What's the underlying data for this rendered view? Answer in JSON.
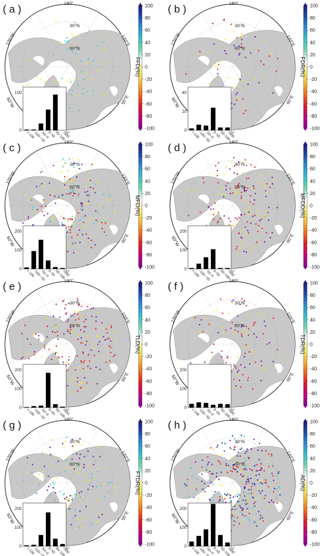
{
  "colorbar": {
    "ticks": [
      "100",
      "80",
      "60",
      "40",
      "20",
      "0",
      "-20",
      "-40",
      "-60",
      "-80",
      "-100"
    ],
    "stops": [
      "#1c1c7a",
      "#1f4db3",
      "#2f8fd6",
      "#39c2c9",
      "#7ad6b0",
      "#ffffff",
      "#f7ec6c",
      "#f8b632",
      "#ef6a1e",
      "#dd1c2a",
      "#c4007a",
      "#8a0096"
    ]
  },
  "map_labels": {
    "top": "180°",
    "lat_inner": "30°N",
    "lat_mid": "60°N",
    "left": "120°W",
    "right": "120°E",
    "lower_left": "60°W",
    "lower_right": "60°E",
    "bottom": "0°"
  },
  "colors": {
    "land": "#c8c8c8",
    "ocean": "#ffffff",
    "bar": "#000000"
  },
  "panels": [
    {
      "id": "a",
      "label": "( a )",
      "variable": "FFD(%)"
    },
    {
      "id": "b",
      "label": "( b )",
      "variable": "FDR(%)"
    },
    {
      "id": "c",
      "label": "( c )",
      "variable": "MFD(%)"
    },
    {
      "id": "d",
      "label": "( d )",
      "variable": "MFDD(%)"
    },
    {
      "id": "e",
      "label": "( e )",
      "variable": "TLD(%)"
    },
    {
      "id": "f",
      "label": "( f )",
      "variable": "TDR(%)"
    },
    {
      "id": "g",
      "label": "( g )",
      "variable": "FTDR(%)"
    },
    {
      "id": "h",
      "label": "( h )",
      "variable": "AD(%)"
    }
  ],
  "chart_data": [
    {
      "panel": "a",
      "type": "bar",
      "categories": [
        "<-100",
        "-100~-50",
        "-50~0",
        "0~50",
        "50~100",
        ">100"
      ],
      "values": [
        2,
        2,
        18,
        55,
        95,
        0
      ],
      "ylim": [
        0,
        100
      ],
      "yticks": [
        "100",
        "0"
      ],
      "map_points": {
        "palette": [
          "yellow",
          "cyan"
        ],
        "count": 70
      }
    },
    {
      "panel": "b",
      "type": "bar",
      "categories": [
        "<-100",
        "-100~-50",
        "-50~0",
        "0~50",
        "50~100",
        ">100"
      ],
      "values": [
        2,
        6,
        5,
        24,
        3,
        3
      ],
      "ylim": [
        0,
        40
      ],
      "yticks": [
        "40",
        "20",
        "0"
      ],
      "map_points": {
        "palette": [
          "yellow",
          "purple",
          "red"
        ],
        "count": 80
      }
    },
    {
      "panel": "c",
      "type": "bar",
      "categories": [
        "<-100",
        "-100~-50",
        "-50~0",
        "0~50",
        "50~100",
        ">100"
      ],
      "values": [
        8,
        95,
        155,
        45,
        10,
        5
      ],
      "ylim": [
        0,
        200
      ],
      "yticks": [
        "200",
        "100",
        "0"
      ],
      "map_points": {
        "palette": [
          "red",
          "yellow",
          "purple",
          "cyan"
        ],
        "count": 220
      }
    },
    {
      "panel": "d",
      "type": "bar",
      "categories": [
        "<-100",
        "-100~-50",
        "-50~0",
        "0~50",
        "50~100",
        ">100"
      ],
      "values": [
        5,
        28,
        62,
        105,
        5,
        5
      ],
      "ylim": [
        0,
        200
      ],
      "yticks": [
        "200",
        "100",
        "0"
      ],
      "map_points": {
        "palette": [
          "yellow",
          "red",
          "purple"
        ],
        "count": 200
      }
    },
    {
      "panel": "e",
      "type": "bar",
      "categories": [
        "<-100",
        "-100~-50",
        "-50~0",
        "0~50",
        "50~100",
        ">100"
      ],
      "values": [
        3,
        8,
        10,
        185,
        18,
        5
      ],
      "ylim": [
        0,
        200
      ],
      "yticks": [
        "200",
        "100",
        "0"
      ],
      "map_points": {
        "palette": [
          "yellow",
          "purple",
          "red"
        ],
        "count": 210
      }
    },
    {
      "panel": "f",
      "type": "bar",
      "categories": [
        "<-100",
        "-100~-50",
        "-50~0",
        "0~50",
        "50~100",
        ">100"
      ],
      "values": [
        20,
        28,
        25,
        15,
        20,
        18
      ],
      "ylim": [
        0,
        200
      ],
      "yticks": [
        "200",
        "100",
        "0"
      ],
      "map_points": {
        "palette": [
          "purple",
          "red",
          "yellow"
        ],
        "count": 110
      }
    },
    {
      "panel": "g",
      "type": "bar",
      "categories": [
        "<-100",
        "-100~-50",
        "-50~0",
        "0~50",
        "50~100",
        ">100"
      ],
      "values": [
        5,
        8,
        60,
        180,
        40,
        12
      ],
      "ylim": [
        0,
        200
      ],
      "yticks": [
        "200",
        "100",
        "0"
      ],
      "map_points": {
        "palette": [
          "yellow",
          "purple",
          "cyan"
        ],
        "count": 170
      }
    },
    {
      "panel": "h",
      "type": "bar",
      "categories": [
        "<-100",
        "-100~-50",
        "-50~0",
        "0~50",
        "50~100",
        ">100"
      ],
      "values": [
        25,
        55,
        90,
        225,
        60,
        20
      ],
      "ylim": [
        0,
        200
      ],
      "yticks": [
        "200",
        "100",
        "0"
      ],
      "map_points": {
        "palette": [
          "yellow",
          "cyan",
          "red",
          "purple",
          "blue"
        ],
        "count": 360
      }
    }
  ]
}
